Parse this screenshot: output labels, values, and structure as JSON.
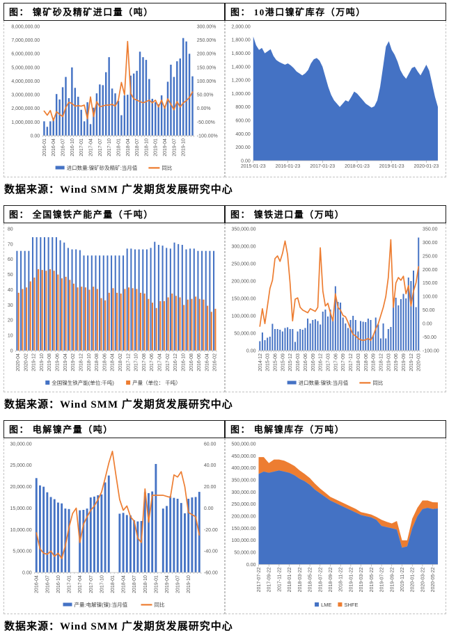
{
  "page": {
    "source_note": "数据来源：Wind SMM  广发期货发展研究中心"
  },
  "colors": {
    "bar_blue": "#4472C4",
    "line_orange": "#ED7D31",
    "axis_text": "#595959",
    "axis_line": "#BFBFBF"
  },
  "chart_data": [
    {
      "type": "bar-line",
      "title": "图： 镍矿砂及精矿进口量（吨）",
      "n": 49,
      "tick_step": 3,
      "rotate_x": true,
      "x_ticks": [
        "2016-01",
        "2016-04",
        "2016-07",
        "2016-10",
        "2017-01",
        "2017-04",
        "2017-07",
        "2017-10",
        "2018-01",
        "2018-04",
        "2018-07",
        "2018-10",
        "2019-01",
        "2019-04",
        "2019-07",
        "2019-10"
      ],
      "left_axis": {
        "min": 0,
        "max": 8000000,
        "step": 1000000,
        "format": "num2"
      },
      "right_axis": {
        "min": -100,
        "max": 300,
        "step": 50,
        "format": "pct2"
      },
      "series": [
        {
          "name": "进口数量:镍矿砂及精矿:当月值",
          "kind": "bar",
          "axis": "left",
          "color": "#4472C4",
          "values": [
            1050000,
            650000,
            1050000,
            1300000,
            3050000,
            2650000,
            3550000,
            4300000,
            2750000,
            5000000,
            3500000,
            2850000,
            1900000,
            1050000,
            2450000,
            850000,
            2050000,
            3100000,
            3750000,
            3700000,
            4650000,
            5750000,
            3450000,
            3100000,
            2550000,
            1500000,
            2950000,
            3000000,
            4400000,
            4550000,
            4750000,
            6150000,
            5750000,
            5550000,
            4150000,
            2700000,
            2450000,
            2300000,
            2950000,
            2200000,
            3950000,
            5200000,
            4300000,
            5450000,
            5650000,
            7150000,
            6900000,
            6000000,
            4350000
          ]
        },
        {
          "name": "同比",
          "kind": "line",
          "axis": "right",
          "color": "#ED7D31",
          "values": [
            -10,
            -25,
            -8,
            -45,
            -12,
            -22,
            -30,
            3,
            22,
            18,
            8,
            10,
            8,
            12,
            -38,
            42,
            -30,
            25,
            6,
            9,
            12,
            12,
            15,
            8,
            30,
            95,
            50,
            245,
            55,
            35,
            30,
            25,
            20,
            25,
            30,
            20,
            30,
            5,
            30,
            0,
            35,
            15,
            -5,
            25,
            5,
            20,
            28,
            40,
            60
          ]
        }
      ],
      "legend": [
        {
          "marker": "bar",
          "label": "进口数量:镍矿砂及精矿:当月值"
        },
        {
          "marker": "line",
          "label": "同比"
        }
      ]
    },
    {
      "type": "area",
      "title": "图： 10港口镍矿库存（万吨）",
      "n": 65,
      "tick_step": 12,
      "rotate_x": false,
      "x_ticks": [
        "2015-01-23",
        "2016-01-23",
        "2017-01-23",
        "2018-01-23",
        "2019-01-23",
        "2020-01-23"
      ],
      "left_axis": {
        "min": 0,
        "max": 2000,
        "step": 200,
        "format": "num2"
      },
      "series": [
        {
          "name": "10港口镍矿库存",
          "kind": "area",
          "axis": "left",
          "color": "#4472C4",
          "values": [
            1850,
            1720,
            1650,
            1680,
            1600,
            1630,
            1660,
            1560,
            1500,
            1470,
            1450,
            1430,
            1450,
            1420,
            1380,
            1330,
            1300,
            1270,
            1300,
            1350,
            1450,
            1510,
            1530,
            1490,
            1400,
            1250,
            1100,
            980,
            900,
            850,
            800,
            850,
            900,
            880,
            950,
            1030,
            1000,
            950,
            900,
            850,
            820,
            790,
            810,
            900,
            1100,
            1400,
            1700,
            1780,
            1650,
            1580,
            1480,
            1350,
            1270,
            1220,
            1300,
            1380,
            1400,
            1330,
            1270,
            1350,
            1430,
            1340,
            1150,
            950,
            800
          ]
        }
      ],
      "legend": []
    },
    {
      "type": "grouped-bar",
      "title": "图： 全国镍铁产能产量（千吨）",
      "n": 51,
      "tick_step": 2,
      "rotate_x": true,
      "x_ticks": [
        "2020-04",
        "2020-02",
        "2019-12",
        "2019-10",
        "2019-08",
        "2019-06",
        "2019-04",
        "2019-02",
        "2018-12",
        "2018-10",
        "2018-08",
        "2018-06",
        "2018-04",
        "2018-02",
        "2017-12",
        "2017-10",
        "2017-08",
        "2017-06",
        "2017-04",
        "2017-02",
        "2016-12",
        "2016-10",
        "2016-08",
        "2016-06",
        "2016-04",
        "2016-02"
      ],
      "left_axis": {
        "min": 0,
        "max": 80,
        "step": 10,
        "format": "int"
      },
      "series": [
        {
          "name": "全国镍生铁产能(单位:千吨)",
          "kind": "bar",
          "axis": "left",
          "color": "#4472C4",
          "values": [
            65.5,
            65.5,
            65.5,
            65.5,
            74.5,
            74.5,
            74.5,
            74.5,
            74.5,
            74.5,
            74.5,
            72.5,
            71,
            67.5,
            66.5,
            66.5,
            66,
            62.5,
            62.5,
            62.5,
            62.5,
            62.5,
            62.5,
            62.5,
            62.5,
            62.5,
            62.5,
            62.5,
            67,
            67,
            66.5,
            66.5,
            66.5,
            66.5,
            67.5,
            71.5,
            69.5,
            69,
            67.5,
            67,
            71,
            70,
            69.5,
            66.5,
            67,
            67,
            65.5,
            65.5,
            65.5,
            65.5,
            65.5
          ]
        },
        {
          "name": "产量（单位： 千吨）",
          "kind": "bar",
          "axis": "left",
          "color": "#ED7D31",
          "values": [
            38,
            40.5,
            41.5,
            45.5,
            48,
            53.5,
            53,
            52.5,
            53.5,
            52.5,
            50,
            47.5,
            48.5,
            46.5,
            44,
            41.5,
            42,
            41.5,
            40,
            42,
            40.5,
            34.5,
            33,
            38,
            41,
            38,
            37.5,
            40.5,
            41.5,
            41,
            40.5,
            38,
            37.5,
            34,
            31.5,
            28,
            32.5,
            32.5,
            35,
            37.5,
            36,
            35,
            30,
            33.5,
            34,
            35.5,
            34,
            33.5,
            29.5,
            25.5,
            27.5
          ]
        }
      ],
      "legend": [
        {
          "marker": "sq",
          "label": "全国镍生铁产能(单位:千吨)"
        },
        {
          "marker": "sq",
          "label": "产量（单位： 千吨）"
        }
      ]
    },
    {
      "type": "bar-line",
      "title": "图： 镍铁进口量（万吨）",
      "n": 64,
      "tick_step": 3,
      "rotate_x": true,
      "x_ticks": [
        "2014-12",
        "2015-03",
        "2015-06",
        "2015-09",
        "2015-12",
        "2016-03",
        "2016-06",
        "2016-09",
        "2016-12",
        "2017-03",
        "2017-06",
        "2017-09",
        "2017-12",
        "2018-03",
        "2018-06",
        "2018-09",
        "2018-12",
        "2019-03",
        "2019-06",
        "2019-09",
        "2019-12",
        "2020-03"
      ],
      "left_axis": {
        "min": 0,
        "max": 350000,
        "step": 50000,
        "format": "num2"
      },
      "right_axis": {
        "min": -100,
        "max": 350,
        "step": 50,
        "format": "num2"
      },
      "series": [
        {
          "name": "进口数量:镍铁:当月值",
          "kind": "bar",
          "axis": "left",
          "color": "#4472C4",
          "values": [
            27000,
            52000,
            30000,
            37000,
            40000,
            77000,
            62000,
            62000,
            60000,
            55000,
            65000,
            67000,
            62000,
            62000,
            25000,
            55000,
            62000,
            60000,
            65000,
            92000,
            78000,
            88000,
            90000,
            85000,
            75000,
            112000,
            118000,
            98000,
            118000,
            95000,
            185000,
            140000,
            138000,
            95000,
            78000,
            65000,
            88000,
            100000,
            88000,
            55000,
            85000,
            83000,
            82000,
            92000,
            88000,
            45000,
            95000,
            75000,
            35000,
            78000,
            35000,
            62000,
            68000,
            135000,
            152000,
            130000,
            148000,
            163000,
            150000,
            210000,
            200000,
            230000,
            125000,
            325000
          ]
        },
        {
          "name": "同比",
          "kind": "line",
          "axis": "right",
          "color": "#ED7D31",
          "values": [
            -10,
            55,
            0,
            65,
            130,
            160,
            240,
            250,
            230,
            260,
            305,
            255,
            150,
            10,
            90,
            95,
            60,
            50,
            45,
            40,
            55,
            50,
            45,
            60,
            280,
            120,
            65,
            75,
            40,
            10,
            110,
            60,
            50,
            30,
            25,
            5,
            -20,
            -40,
            -45,
            -55,
            -60,
            -62,
            -60,
            -55,
            -62,
            -45,
            -20,
            0,
            30,
            60,
            100,
            170,
            310,
            60,
            150,
            170,
            160,
            175,
            110,
            140,
            65,
            120,
            150,
            210
          ]
        }
      ],
      "legend": [
        {
          "marker": "bar",
          "label": "进口数量:镍铁:当月值"
        },
        {
          "marker": "line",
          "label": "同比"
        }
      ]
    },
    {
      "type": "bar-line",
      "title": "图： 电解镍产量（吨）",
      "n": 46,
      "tick_step": 3,
      "rotate_x": true,
      "x_ticks": [
        "2016-04",
        "2016-07",
        "2016-10",
        "2017-01",
        "2017-04",
        "2017-07",
        "2017-10",
        "2018-01",
        "2018-04",
        "2018-07",
        "2018-10",
        "2019-01",
        "2019-04",
        "2019-07",
        "2019-10"
      ],
      "left_axis": {
        "min": 0,
        "max": 30000,
        "step": 5000,
        "format": "num2"
      },
      "right_axis": {
        "min": -60,
        "max": 60,
        "step": 20,
        "format": "num2"
      },
      "series": [
        {
          "name": "产量:电解镍(镍):当月值",
          "kind": "bar",
          "axis": "left",
          "color": "#4472C4",
          "values": [
            22000,
            20300,
            20000,
            18700,
            17600,
            17100,
            16300,
            16100,
            14900,
            14800,
            null,
            null,
            14500,
            14600,
            14900,
            17500,
            17700,
            18000,
            18200,
            21000,
            22600,
            null,
            null,
            13700,
            13900,
            13400,
            13300,
            12200,
            11900,
            12000,
            18700,
            18500,
            18900,
            25300,
            null,
            14900,
            15500,
            17800,
            17400,
            17200,
            16200,
            13800,
            17200,
            17500,
            17600,
            18800
          ]
        },
        {
          "name": "同比",
          "kind": "line",
          "axis": "right",
          "color": "#ED7D31",
          "values": [
            -23,
            -38,
            -42,
            -43,
            -40,
            -45,
            -42,
            -47,
            -35,
            -18,
            -5,
            0,
            -32,
            -15,
            -8,
            -2,
            2,
            8,
            15,
            28,
            42,
            53,
            30,
            8,
            -2,
            2,
            -8,
            -12,
            -28,
            -32,
            18,
            -13,
            12,
            12,
            12,
            12,
            11,
            10,
            31,
            29,
            34,
            20,
            -4,
            -6,
            -8,
            -25
          ]
        }
      ],
      "legend": [
        {
          "marker": "bar",
          "label": "产量:电解镍(镍):当月值"
        },
        {
          "marker": "line",
          "label": "同比"
        }
      ]
    },
    {
      "type": "stacked-area",
      "title": "图： 电解镍库存（万吨）",
      "n": 36,
      "tick_step": 2,
      "rotate_x": true,
      "x_ticks": [
        "2017-07-22",
        "2017-09-22",
        "2017-11-22",
        "2018-01-22",
        "2018-03-22",
        "2018-05-22",
        "2018-07-22",
        "2018-09-22",
        "2018-11-22",
        "2019-01-22",
        "2019-03-22",
        "2019-05-22",
        "2019-07-22",
        "2019-09-22",
        "2019-11-22",
        "2020-01-22",
        "2020-03-22",
        "2020-05-22"
      ],
      "left_axis": {
        "min": 0,
        "max": 500000,
        "step": 50000,
        "format": "num2"
      },
      "series": [
        {
          "name": "LME",
          "kind": "area",
          "axis": "left",
          "color": "#4472C4",
          "values": [
            375000,
            385000,
            380000,
            385000,
            390000,
            385000,
            380000,
            370000,
            355000,
            345000,
            330000,
            310000,
            295000,
            280000,
            265000,
            255000,
            245000,
            235000,
            225000,
            215000,
            205000,
            200000,
            195000,
            185000,
            160000,
            155000,
            150000,
            145000,
            70000,
            75000,
            150000,
            200000,
            230000,
            235000,
            230000,
            232000
          ]
        },
        {
          "name": "SHFE",
          "kind": "area",
          "axis": "left",
          "color": "#ED7D31",
          "values": [
            70000,
            60000,
            40000,
            50000,
            45000,
            45000,
            40000,
            38000,
            35000,
            30000,
            28000,
            25000,
            20000,
            18000,
            15000,
            15000,
            15000,
            15000,
            15000,
            15000,
            12000,
            12000,
            12000,
            12000,
            25000,
            22000,
            20000,
            35000,
            30000,
            25000,
            40000,
            35000,
            35000,
            30000,
            28000,
            25000
          ]
        }
      ],
      "legend": [
        {
          "marker": "sq",
          "label": "LME"
        },
        {
          "marker": "sq",
          "label": "SHFE"
        }
      ]
    }
  ]
}
